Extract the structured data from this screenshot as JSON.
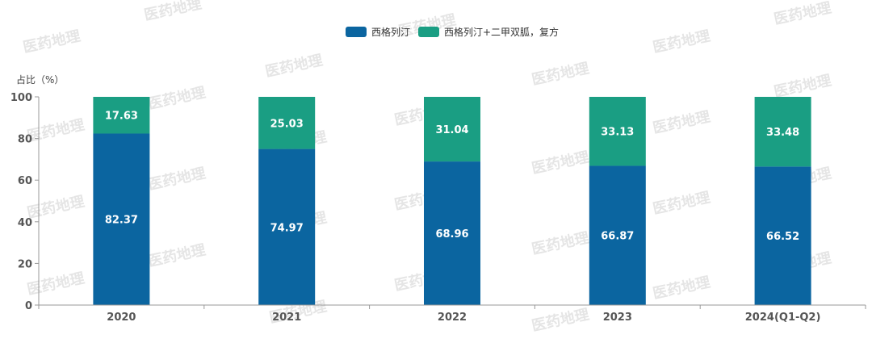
{
  "watermark": "医药地理",
  "colors": {
    "series1": "#0b65a0",
    "series2": "#1a9e83",
    "axis": "#999999"
  },
  "chart_data": {
    "type": "bar",
    "stacked": true,
    "categories": [
      "2020",
      "2021",
      "2022",
      "2023",
      "2024(Q1-Q2)"
    ],
    "series": [
      {
        "name": "西格列汀",
        "values": [
          82.37,
          74.97,
          68.96,
          66.87,
          66.52
        ]
      },
      {
        "name": "西格列汀+二甲双胍，复方",
        "values": [
          17.63,
          25.03,
          31.04,
          33.13,
          33.48
        ]
      }
    ],
    "ylabel": "占比（%）",
    "ylim": [
      0,
      100
    ],
    "yticks": [
      0,
      20,
      40,
      60,
      80,
      100
    ],
    "grid": false,
    "legend": "top-center"
  }
}
